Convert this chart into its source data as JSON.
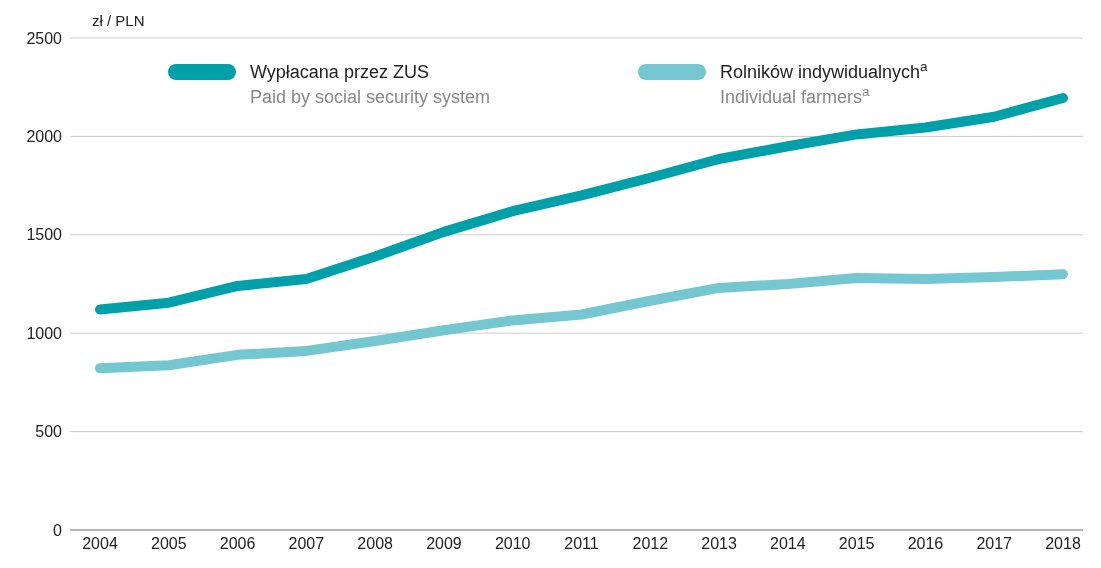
{
  "chart_data": {
    "type": "line",
    "ylabel": "zł / PLN",
    "categories": [
      "2004",
      "2005",
      "2006",
      "2007",
      "2008",
      "2009",
      "2010",
      "2011",
      "2012",
      "2013",
      "2014",
      "2015",
      "2016",
      "2017",
      "2018"
    ],
    "series": [
      {
        "name": "Wypłacana przez ZUS\nPaid by social security system",
        "color": "#00a0aa",
        "values": [
          1120,
          1155,
          1240,
          1275,
          1390,
          1515,
          1620,
          1700,
          1790,
          1885,
          1950,
          2010,
          2045,
          2100,
          2195
        ]
      },
      {
        "name": "Rolników indywidualnych$^{a}$\nIndividual farmers$^{a}$",
        "color": "#74c7d0",
        "values": [
          822,
          837,
          890,
          910,
          960,
          1015,
          1065,
          1095,
          1165,
          1230,
          1250,
          1280,
          1275,
          1285,
          1300
        ]
      }
    ],
    "ylim": [
      0,
      2500
    ],
    "yticks": [
      0,
      500,
      1000,
      1500,
      2000,
      2500
    ],
    "grid": "y",
    "legend": "top",
    "marker": "none",
    "line_style": "solid"
  }
}
